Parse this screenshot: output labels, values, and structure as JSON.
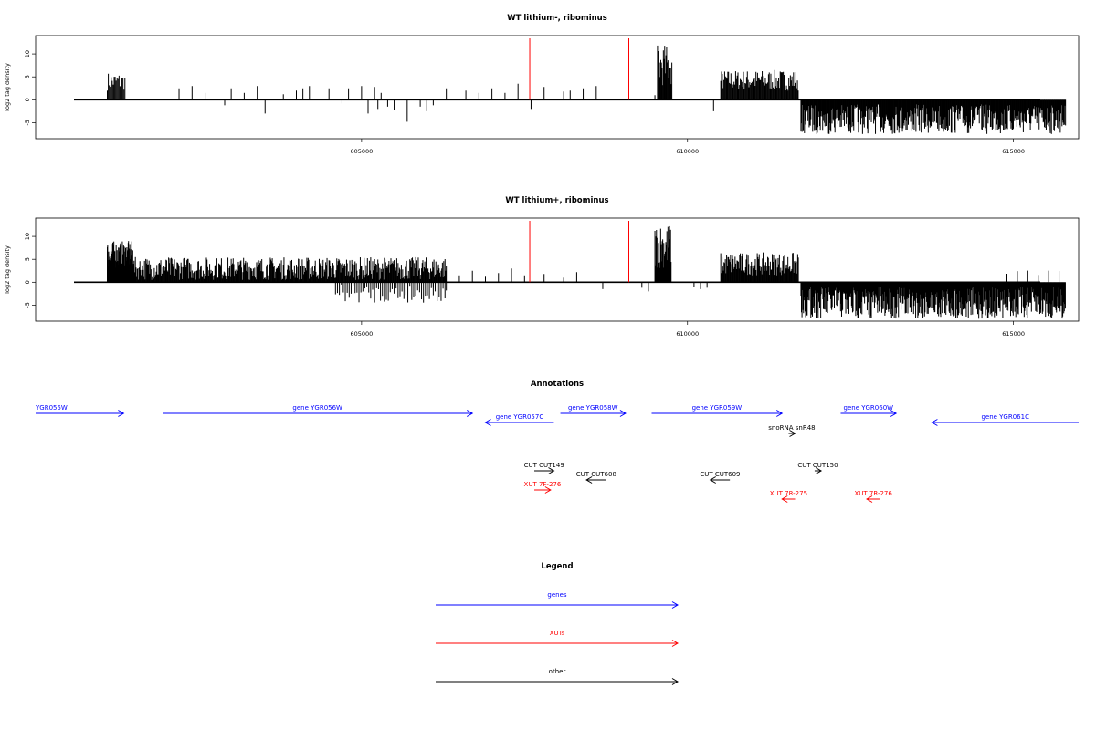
{
  "chart_data": [
    {
      "type": "bar",
      "title": "WT lithium-, ribominus",
      "ylabel": "log2 tag density",
      "xlim": [
        600000,
        616000
      ],
      "ylim": [
        -8.5,
        14
      ],
      "yticks": [
        -5,
        0,
        5,
        10
      ],
      "xticks": [
        605000,
        610000,
        615000
      ],
      "marker_lines": [
        607580,
        609100
      ],
      "marker_color": "#ff0000",
      "segments": [
        {
          "from": 601100,
          "to": 601380,
          "step": 15,
          "ymin": 2,
          "ymax": 6,
          "sign": 1
        },
        {
          "from": 610510,
          "to": 611700,
          "step": 12,
          "ymin": 2,
          "ymax": 6.5,
          "sign": 1
        },
        {
          "from": 611740,
          "to": 615800,
          "step": 9,
          "ymin": 1,
          "ymax": 7.5,
          "sign": -1
        },
        {
          "from": 609540,
          "to": 609760,
          "step": 10,
          "ymin": 3,
          "ymax": 12,
          "sign": 1
        }
      ],
      "sparse": [
        [
          602200,
          2.5
        ],
        [
          602400,
          3
        ],
        [
          602600,
          1.5
        ],
        [
          602900,
          -1.2
        ],
        [
          603000,
          2.5
        ],
        [
          603200,
          1.5
        ],
        [
          603400,
          3
        ],
        [
          603520,
          -3
        ],
        [
          603800,
          1.2
        ],
        [
          604000,
          2
        ],
        [
          604100,
          2.5
        ],
        [
          604200,
          3
        ],
        [
          604500,
          2.5
        ],
        [
          604700,
          -0.8
        ],
        [
          604800,
          2.5
        ],
        [
          605000,
          3
        ],
        [
          605200,
          2.8
        ],
        [
          605300,
          1.5
        ],
        [
          605100,
          -3
        ],
        [
          605250,
          -2
        ],
        [
          605400,
          -1.5
        ],
        [
          605500,
          -2.2
        ],
        [
          605700,
          -4.8
        ],
        [
          605900,
          -1.5
        ],
        [
          606000,
          -2.5
        ],
        [
          606100,
          -1.2
        ],
        [
          606300,
          2.5
        ],
        [
          606600,
          2
        ],
        [
          606800,
          1.5
        ],
        [
          607000,
          2.5
        ],
        [
          607200,
          1.5
        ],
        [
          607400,
          3.5
        ],
        [
          607600,
          -2
        ],
        [
          607800,
          2.8
        ],
        [
          608100,
          1.8
        ],
        [
          608200,
          2
        ],
        [
          608400,
          2.5
        ],
        [
          608600,
          3
        ],
        [
          609500,
          1
        ],
        [
          610400,
          -2.5
        ]
      ]
    },
    {
      "type": "bar",
      "title": "WT lithium+, ribominus",
      "ylabel": "log2 tag density",
      "xlim": [
        600000,
        616000
      ],
      "ylim": [
        -8.5,
        14
      ],
      "yticks": [
        -5,
        0,
        5,
        10
      ],
      "xticks": [
        605000,
        610000,
        615000
      ],
      "marker_lines": [
        607580,
        609100
      ],
      "marker_color": "#ff0000",
      "segments": [
        {
          "from": 601100,
          "to": 601500,
          "step": 5,
          "ymin": 3,
          "ymax": 9,
          "sign": 1
        },
        {
          "from": 601500,
          "to": 606300,
          "step": 10,
          "ymin": 0.5,
          "ymax": 5.5,
          "sign": 1
        },
        {
          "from": 604600,
          "to": 606300,
          "step": 30,
          "ymin": 0.5,
          "ymax": 4.5,
          "sign": -1
        },
        {
          "from": 609500,
          "to": 609750,
          "step": 8,
          "ymin": 3,
          "ymax": 13,
          "sign": 1
        },
        {
          "from": 610510,
          "to": 611700,
          "step": 10,
          "ymin": 1.5,
          "ymax": 6.5,
          "sign": 1
        },
        {
          "from": 611740,
          "to": 615800,
          "step": 8,
          "ymin": 1,
          "ymax": 8,
          "sign": -1
        },
        {
          "from": 614900,
          "to": 615800,
          "step": 160,
          "ymin": 1,
          "ymax": 3,
          "sign": 1
        }
      ],
      "sparse": [
        [
          606500,
          1.5
        ],
        [
          606700,
          2.5
        ],
        [
          606900,
          1.2
        ],
        [
          607100,
          2
        ],
        [
          607300,
          3
        ],
        [
          607500,
          1.5
        ],
        [
          607800,
          1.8
        ],
        [
          608100,
          1
        ],
        [
          608300,
          2.2
        ],
        [
          608700,
          -1.5
        ],
        [
          609300,
          -1.2
        ],
        [
          609400,
          -2
        ],
        [
          610100,
          -1
        ],
        [
          610200,
          -1.5
        ],
        [
          610300,
          -1.2
        ],
        [
          606300,
          -1.8
        ],
        [
          606100,
          -1.2
        ]
      ]
    }
  ],
  "annotations_title": "Annotations",
  "annotations": [
    {
      "label": "YGR055W",
      "x1": 600000,
      "x2": 601350,
      "row": 0,
      "dir": "right",
      "color": "#0000ff",
      "cls": "gene"
    },
    {
      "label": "gene YGR056W",
      "x1": 601950,
      "x2": 606700,
      "row": 0,
      "dir": "right",
      "color": "#0000ff",
      "cls": "gene"
    },
    {
      "label": "gene YGR057C",
      "x1": 606900,
      "x2": 607950,
      "row": 1,
      "dir": "left",
      "color": "#0000ff",
      "cls": "gene"
    },
    {
      "label": "gene YGR058W",
      "x1": 608050,
      "x2": 609050,
      "row": 0,
      "dir": "right",
      "color": "#0000ff",
      "cls": "gene"
    },
    {
      "label": "gene YGR059W",
      "x1": 609450,
      "x2": 611450,
      "row": 0,
      "dir": "right",
      "color": "#0000ff",
      "cls": "gene"
    },
    {
      "label": "gene YGR060W",
      "x1": 612350,
      "x2": 613200,
      "row": 0,
      "dir": "right",
      "color": "#0000ff",
      "cls": "gene"
    },
    {
      "label": "gene YGR061C",
      "x1": 613750,
      "x2": 616000,
      "row": 1,
      "dir": "left",
      "color": "#0000ff",
      "cls": "gene"
    },
    {
      "label": "snoRNA snR48",
      "x1": 611550,
      "x2": 611650,
      "row": 2,
      "dir": "right",
      "color": "#000000",
      "cls": "other"
    },
    {
      "label": "CUT CUT149",
      "x1": 607650,
      "x2": 607950,
      "row": 3,
      "dir": "right",
      "color": "#000000",
      "cls": "other"
    },
    {
      "label": "CUT CUT150",
      "x1": 611950,
      "x2": 612050,
      "row": 3,
      "dir": "right",
      "color": "#000000",
      "cls": "other"
    },
    {
      "label": "CUT CUT608",
      "x1": 608450,
      "x2": 608750,
      "row": 4,
      "dir": "left",
      "color": "#000000",
      "cls": "other"
    },
    {
      "label": "CUT CUT609",
      "x1": 610350,
      "x2": 610650,
      "row": 4,
      "dir": "left",
      "color": "#000000",
      "cls": "other"
    },
    {
      "label": "XUT 7F-276",
      "x1": 607650,
      "x2": 607900,
      "row": 5,
      "dir": "right",
      "color": "#ff0000",
      "cls": "xut"
    },
    {
      "label": "XUT 7R-275",
      "x1": 611450,
      "x2": 611650,
      "row": 6,
      "dir": "left",
      "color": "#ff0000",
      "cls": "xut"
    },
    {
      "label": "XUT 7R-276",
      "x1": 612750,
      "x2": 612950,
      "row": 6,
      "dir": "left",
      "color": "#ff0000",
      "cls": "xut"
    }
  ],
  "legend_title": "Legend",
  "legend": [
    {
      "label": "genes",
      "color": "#0000ff"
    },
    {
      "label": "XUTs",
      "color": "#ff0000"
    },
    {
      "label": "other",
      "color": "#000000"
    }
  ]
}
